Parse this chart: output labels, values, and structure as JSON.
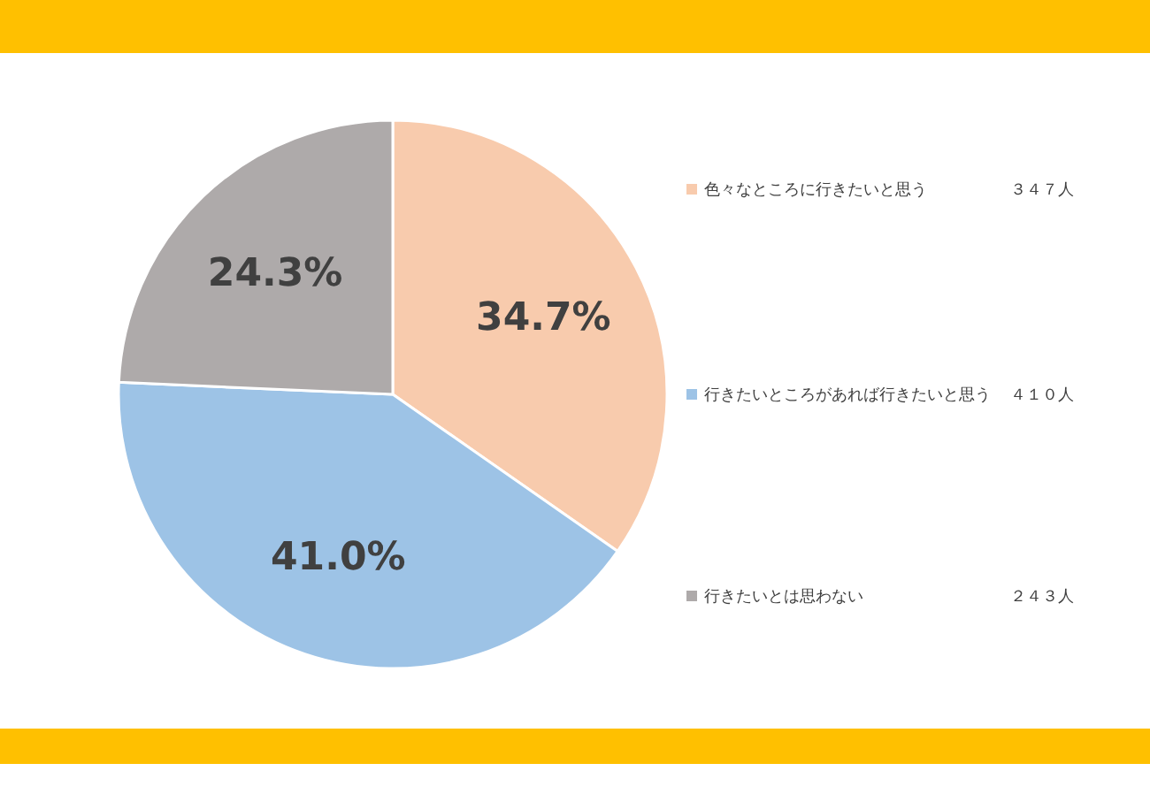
{
  "chart_data": {
    "type": "pie",
    "categories": [
      "色々なところに行きたいと思う",
      "行きたいところがあれば行きたいと思う",
      "行きたいとは思わない"
    ],
    "values": [
      34.7,
      41.0,
      24.3
    ],
    "colors": [
      "#f8cbad",
      "#9dc3e6",
      "#aeaaaa"
    ],
    "value_labels": [
      "34.7%",
      "41.0%",
      "24.3%"
    ],
    "annotations": [
      "３４７人",
      "４１０人",
      "２４３人"
    ],
    "legend": "right"
  }
}
